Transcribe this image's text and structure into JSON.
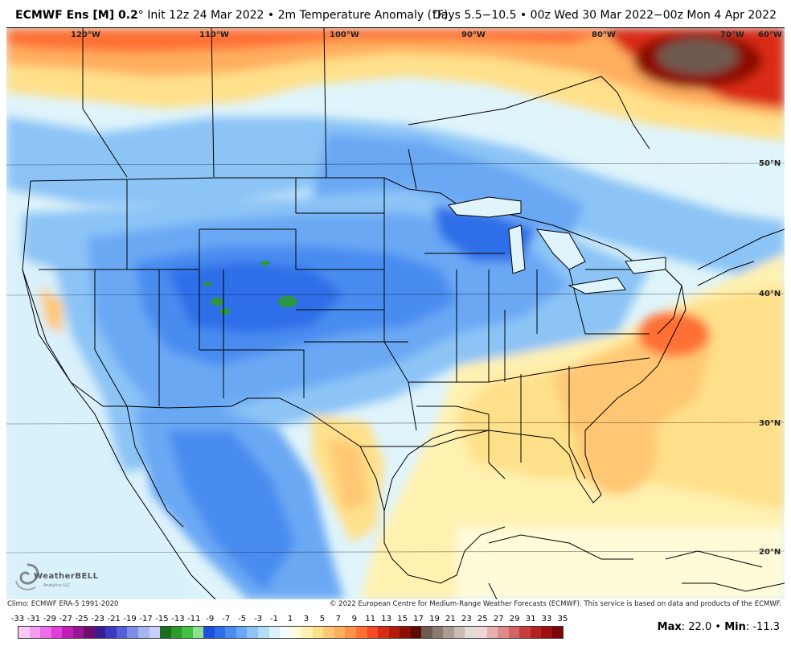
{
  "header": {
    "title_bold": "ECMWF Ens [M] 0.2",
    "title_rest": "° Init 12z 24 Mar 2022 • 2m Temperature Anomaly (°F)",
    "valid": "Days 5.5−10.5 • 00z Wed 30 Mar 2022−00z Mon 4 Apr 2022"
  },
  "map": {
    "lon_labels": [
      "120°W",
      "110°W",
      "100°W",
      "90°W",
      "80°W",
      "70°W",
      "60°W"
    ],
    "lat_labels": [
      "50°N",
      "40°N",
      "30°N",
      "20°N"
    ]
  },
  "logo": {
    "name": "WeatherBELL",
    "sub": "Analytics LLC"
  },
  "footer": {
    "climo": "Climo: ECMWF ERA-5 1991-2020",
    "copyright": "© 2022 European Centre for Medium-Range Weather Forecasts (ECMWF). This service is based on data and products of the ECMWF."
  },
  "scale": {
    "ticks": [
      "-33",
      "-31",
      "-29",
      "-27",
      "-25",
      "-23",
      "-21",
      "-19",
      "-17",
      "-15",
      "-13",
      "-11",
      "-9",
      "-7",
      "-5",
      "-3",
      "-1",
      "1",
      "3",
      "5",
      "7",
      "9",
      "11",
      "13",
      "15",
      "17",
      "19",
      "21",
      "23",
      "25",
      "27",
      "29",
      "31",
      "33",
      "35"
    ],
    "colors": [
      "#f9c8f5",
      "#f49cf0",
      "#ec6de6",
      "#dd3fd8",
      "#c21db8",
      "#9a1595",
      "#6f0f74",
      "#3b1c93",
      "#3d3ac0",
      "#5560d8",
      "#7e8ee8",
      "#a6b4f2",
      "#c9d0f7",
      "#1c6b1e",
      "#2e9a2e",
      "#3fc23f",
      "#8fe08f",
      "#1d4fd8",
      "#2f6ee8",
      "#4a8cf0",
      "#6aa8f4",
      "#8cc4f6",
      "#b2ddf8",
      "#d9f1fb",
      "#f5fbfd",
      "#fffbd9",
      "#fff1b0",
      "#ffe08a",
      "#ffc773",
      "#ffad5e",
      "#ff914a",
      "#ff6f36",
      "#f44a24",
      "#d92c16",
      "#b51b0d",
      "#8c0f06",
      "#5e0a04",
      "#6e5a4f",
      "#8d7a6e",
      "#ab9b90",
      "#c8bdb4",
      "#e3dcd6",
      "#f2d5d5",
      "#eab0b0",
      "#e08a8a",
      "#d46464",
      "#c63f3f",
      "#b52020",
      "#9c1010",
      "#7d0606"
    ]
  },
  "stats": {
    "max_label": "Max",
    "max_value": "22.0",
    "min_label": "Min",
    "min_value": "-11.3",
    "separator": "•"
  }
}
